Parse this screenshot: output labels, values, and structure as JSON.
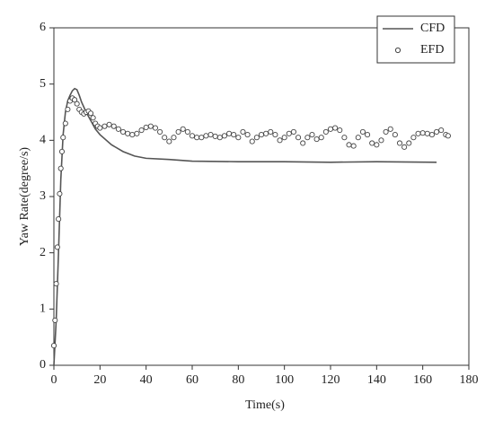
{
  "chart_data": {
    "type": "line",
    "xlabel": "Time(s)",
    "ylabel": "Yaw Rate(degree/s)",
    "xlim": [
      0,
      180
    ],
    "xticks": [
      0,
      20,
      40,
      60,
      80,
      100,
      120,
      140,
      160,
      180
    ],
    "ylim": [
      0,
      6
    ],
    "yticks": [
      0,
      1,
      2,
      3,
      4,
      5,
      6
    ],
    "legend": "upper right",
    "series": [
      {
        "name": "CFD",
        "type": "line",
        "color": "#555555",
        "x": [
          0,
          1,
          2,
          3,
          4,
          5,
          6,
          7,
          8,
          9,
          10,
          11,
          12,
          14,
          16,
          18,
          20,
          25,
          30,
          35,
          40,
          50,
          60,
          80,
          100,
          120,
          140,
          166
        ],
        "values": [
          0,
          0.8,
          2,
          3.3,
          4.1,
          4.5,
          4.7,
          4.8,
          4.88,
          4.92,
          4.9,
          4.8,
          4.68,
          4.5,
          4.35,
          4.2,
          4.1,
          3.92,
          3.8,
          3.72,
          3.68,
          3.66,
          3.63,
          3.62,
          3.62,
          3.61,
          3.62,
          3.61
        ]
      },
      {
        "name": "EFD",
        "type": "scatter",
        "color": "#444444",
        "x": [
          0,
          0.5,
          1,
          1.5,
          2,
          2.5,
          3,
          3.5,
          4,
          5,
          6,
          7,
          8,
          9,
          10,
          11,
          12,
          13,
          14,
          15,
          16,
          17,
          18,
          19,
          20,
          22,
          24,
          26,
          28,
          30,
          32,
          34,
          36,
          38,
          40,
          42,
          44,
          46,
          48,
          50,
          52,
          54,
          56,
          58,
          60,
          62,
          64,
          66,
          68,
          70,
          72,
          74,
          76,
          78,
          80,
          82,
          84,
          86,
          88,
          90,
          92,
          94,
          96,
          98,
          100,
          102,
          104,
          106,
          108,
          110,
          112,
          114,
          116,
          118,
          120,
          122,
          124,
          126,
          128,
          130,
          132,
          134,
          136,
          138,
          140,
          142,
          144,
          146,
          148,
          150,
          152,
          154,
          156,
          158,
          160,
          162,
          164,
          166,
          168,
          170,
          171
        ],
        "values": [
          0.35,
          0.8,
          1.45,
          2.1,
          2.6,
          3.05,
          3.5,
          3.8,
          4.05,
          4.3,
          4.55,
          4.7,
          4.75,
          4.72,
          4.65,
          4.55,
          4.5,
          4.47,
          4.5,
          4.52,
          4.48,
          4.4,
          4.3,
          4.25,
          4.22,
          4.25,
          4.28,
          4.25,
          4.2,
          4.15,
          4.12,
          4.1,
          4.12,
          4.18,
          4.23,
          4.25,
          4.22,
          4.15,
          4.05,
          3.98,
          4.05,
          4.15,
          4.2,
          4.15,
          4.08,
          4.05,
          4.05,
          4.08,
          4.1,
          4.07,
          4.05,
          4.08,
          4.12,
          4.1,
          4.05,
          4.15,
          4.1,
          3.98,
          4.05,
          4.1,
          4.12,
          4.15,
          4.1,
          4.0,
          4.05,
          4.12,
          4.15,
          4.05,
          3.95,
          4.05,
          4.1,
          4.02,
          4.05,
          4.15,
          4.2,
          4.22,
          4.18,
          4.05,
          3.92,
          3.9,
          4.05,
          4.15,
          4.1,
          3.95,
          3.92,
          4.0,
          4.15,
          4.2,
          4.1,
          3.95,
          3.88,
          3.95,
          4.05,
          4.12,
          4.13,
          4.12,
          4.1,
          4.15,
          4.18,
          4.1,
          4.08
        ]
      }
    ]
  }
}
